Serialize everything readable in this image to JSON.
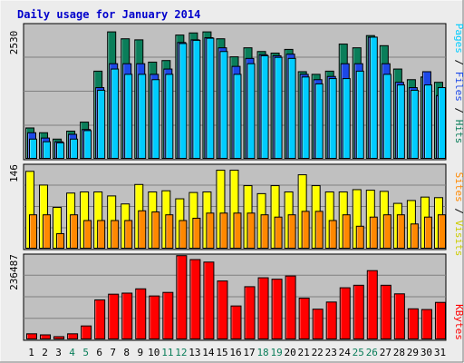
{
  "title": "Daily usage for January 2014",
  "colors": {
    "title": "#0000cc",
    "hits": "#0a7e5a",
    "files": "#1c48e8",
    "pages": "#00ccff",
    "visits": "#ffff00",
    "sites": "#ff8800",
    "kbytes": "#ff0000",
    "weekend": "#0a7e5a",
    "weekday": "#000000",
    "plot_bg": "#c0c0c0",
    "page_bg": "#ececec"
  },
  "legend": {
    "top": {
      "pages": "Pages",
      "files": "Files",
      "hits": "Hits",
      "sep": " / "
    },
    "middle": {
      "sites": "Sites",
      "visits": "Visits",
      "sep": " / "
    },
    "bottom": {
      "kbytes": "KBytes"
    }
  },
  "axis_max_labels": {
    "top": "2530",
    "middle": "146",
    "bottom": "236487"
  },
  "chart_data": [
    {
      "type": "bar",
      "title": "Daily usage for January 2014",
      "categories": [
        "1",
        "2",
        "3",
        "4",
        "5",
        "6",
        "7",
        "8",
        "9",
        "10",
        "11",
        "12",
        "13",
        "14",
        "15",
        "16",
        "17",
        "18",
        "19",
        "20",
        "21",
        "22",
        "23",
        "24",
        "25",
        "26",
        "27",
        "28",
        "29",
        "30",
        "31"
      ],
      "weekend_days": [
        "4",
        "5",
        "11",
        "12",
        "18",
        "19",
        "25",
        "26"
      ],
      "ylim": [
        0,
        2530
      ],
      "series": [
        {
          "name": "Hits",
          "values": [
            590,
            500,
            380,
            530,
            700,
            1660,
            2400,
            2270,
            2250,
            1830,
            1860,
            2340,
            2380,
            2400,
            2270,
            1930,
            2100,
            2030,
            2000,
            2070,
            1650,
            1600,
            1660,
            2170,
            2100,
            2330,
            2140,
            1700,
            1500,
            1550,
            1450
          ]
        },
        {
          "name": "Files",
          "values": [
            500,
            400,
            330,
            470,
            560,
            1350,
            1800,
            1800,
            1800,
            1600,
            1700,
            2200,
            2250,
            2290,
            2100,
            1750,
            1900,
            1970,
            1950,
            1980,
            1600,
            1500,
            1560,
            1800,
            1800,
            2300,
            1800,
            1450,
            1350,
            1650,
            1200
          ]
        },
        {
          "name": "Pages",
          "values": [
            380,
            330,
            310,
            380,
            540,
            1300,
            1700,
            1600,
            1600,
            1500,
            1600,
            2180,
            2240,
            2280,
            2030,
            1600,
            1800,
            1950,
            1920,
            1900,
            1550,
            1420,
            1520,
            1520,
            1660,
            2300,
            1600,
            1400,
            1300,
            1400,
            1350
          ]
        }
      ]
    },
    {
      "type": "bar",
      "categories": [
        "1",
        "2",
        "3",
        "4",
        "5",
        "6",
        "7",
        "8",
        "9",
        "10",
        "11",
        "12",
        "13",
        "14",
        "15",
        "16",
        "17",
        "18",
        "19",
        "20",
        "21",
        "22",
        "23",
        "24",
        "25",
        "26",
        "27",
        "28",
        "29",
        "30",
        "31"
      ],
      "ylim": [
        0,
        146
      ],
      "series": [
        {
          "name": "Visits",
          "values": [
            136,
            112,
            73,
            98,
            100,
            100,
            93,
            79,
            113,
            100,
            102,
            88,
            99,
            100,
            138,
            138,
            111,
            97,
            111,
            100,
            130,
            111,
            100,
            100,
            104,
            103,
            101,
            80,
            85,
            91,
            90
          ]
        },
        {
          "name": "Sites",
          "values": [
            60,
            60,
            27,
            60,
            50,
            50,
            50,
            50,
            67,
            65,
            60,
            50,
            54,
            63,
            63,
            63,
            63,
            60,
            56,
            60,
            66,
            66,
            50,
            60,
            40,
            56,
            60,
            60,
            44,
            56,
            60
          ]
        }
      ]
    },
    {
      "type": "bar",
      "categories": [
        "1",
        "2",
        "3",
        "4",
        "5",
        "6",
        "7",
        "8",
        "9",
        "10",
        "11",
        "12",
        "13",
        "14",
        "15",
        "16",
        "17",
        "18",
        "19",
        "20",
        "21",
        "22",
        "23",
        "24",
        "25",
        "26",
        "27",
        "28",
        "29",
        "30",
        "31"
      ],
      "ylim": [
        0,
        236487
      ],
      "series": [
        {
          "name": "KBytes",
          "values": [
            17000,
            14000,
            9000,
            17000,
            39000,
            112000,
            128000,
            131000,
            143000,
            123000,
            133000,
            236000,
            225000,
            218000,
            165000,
            95000,
            149000,
            174000,
            170000,
            179000,
            117000,
            86000,
            106000,
            146000,
            153000,
            194000,
            153000,
            129000,
            87000,
            85000,
            105000
          ]
        }
      ]
    }
  ]
}
